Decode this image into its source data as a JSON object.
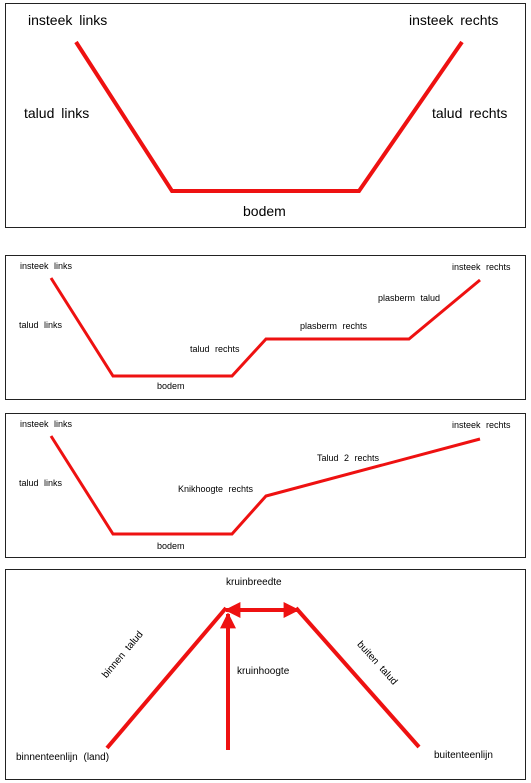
{
  "colors": {
    "line": "#ee1111",
    "border": "#222222",
    "text": "#000000"
  },
  "panel1": {
    "top_left": "insteek links",
    "top_right": "insteek rechts",
    "slope_left": "talud links",
    "slope_right": "talud rechts",
    "bottom": "bodem"
  },
  "panel2": {
    "top_left": "insteek links",
    "top_right": "insteek rechts",
    "slope_left": "talud links",
    "bottom": "bodem",
    "slope_right": "talud rechts",
    "berm": "plasberm rechts",
    "berm_slope": "plasberm talud"
  },
  "panel3": {
    "top_left": "insteek links",
    "top_right": "insteek rechts",
    "slope_left": "talud links",
    "bottom": "bodem",
    "knick": "Knikhoogte rechts",
    "slope2": "Talud 2 rechts"
  },
  "panel4": {
    "crest_width": "kruinbreedte",
    "crest_height": "kruinhoogte",
    "inner_slope": "binnen talud",
    "outer_slope": "buiten talud",
    "inner_toe": "binnenteenlijn (land)",
    "outer_toe": "buitenteenlijn"
  }
}
